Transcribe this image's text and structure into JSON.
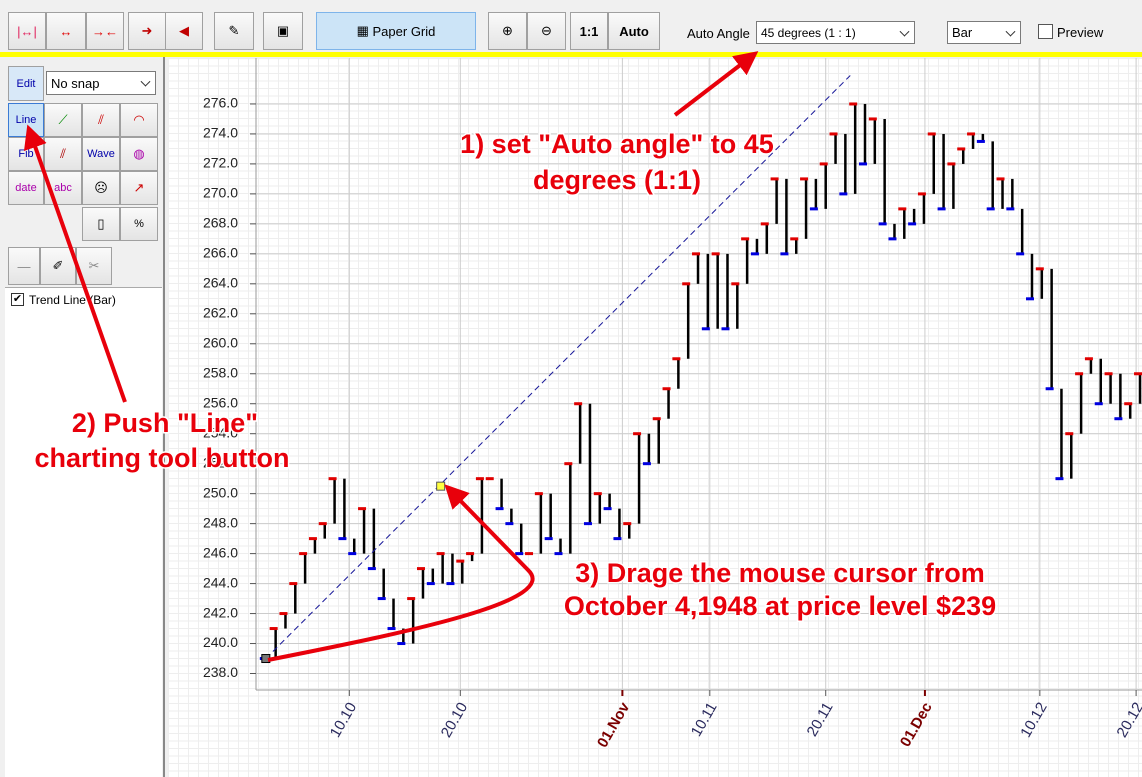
{
  "toolbar": {
    "paper_grid": "Paper Grid",
    "one_to_one": "1:1",
    "auto": "Auto",
    "auto_angle_label": "Auto Angle",
    "auto_angle_value": "45 degrees (1 : 1)",
    "chart_style": "Bar",
    "preview": "Preview"
  },
  "tool_panel": {
    "edit": "Edit",
    "snap": "No snap",
    "line": "Line",
    "fib": "Fib",
    "wave": "Wave",
    "date": "date",
    "abc": "abc",
    "percent": "%",
    "objects": [
      "Trend Line (Bar)"
    ]
  },
  "annotations": [
    {
      "lines": [
        "1) set \"Auto angle\"  to 45",
        "degrees (1:1)"
      ]
    },
    {
      "lines": [
        "2) Push \"Line\"",
        "charting tool button"
      ]
    },
    {
      "lines": [
        "3) Drage the mouse cursor from",
        "October 4,1948 at price level $239"
      ]
    }
  ],
  "chart_data": {
    "type": "step",
    "values": [
      239,
      241,
      242,
      244,
      246,
      247,
      248,
      251,
      247,
      246,
      249,
      245,
      243,
      241,
      240,
      243,
      245,
      244,
      246,
      244,
      245.5,
      246,
      251,
      251,
      249,
      248,
      246,
      246,
      250,
      247,
      246,
      252,
      256,
      248,
      250,
      249,
      247,
      248,
      254,
      252,
      255,
      257,
      259,
      264,
      266,
      261,
      266,
      261,
      264,
      267,
      266,
      268,
      271,
      266,
      267,
      271,
      269,
      272,
      274,
      270,
      276,
      272,
      275,
      268,
      267,
      269,
      268,
      270,
      274,
      269,
      272,
      273,
      274,
      273.5,
      269,
      271,
      269,
      266,
      263,
      265,
      257,
      251,
      254,
      258,
      259,
      256,
      258,
      255,
      256,
      258
    ],
    "color": "#000000",
    "up_color": "#e00000",
    "down_color": "#0000e0",
    "xlim": [
      -1,
      89.2
    ],
    "xticks": [
      {
        "value": 8.5,
        "label": "10.10"
      },
      {
        "value": 19.8,
        "label": "20.10"
      },
      {
        "value": 36.3,
        "label": "01.Nov",
        "emphasis": true
      },
      {
        "value": 45.2,
        "label": "10.11"
      },
      {
        "value": 57,
        "label": "20.11"
      },
      {
        "value": 67.1,
        "label": "01.Dec",
        "emphasis": true
      },
      {
        "value": 78.8,
        "label": "10.12"
      },
      {
        "value": 88.6,
        "label": "20.12"
      }
    ],
    "label_color": "#2b2b5e",
    "emphasis_color": "#7a0000",
    "ylim": [
      236.9,
      278.8
    ],
    "yticks": [
      {
        "value": 238,
        "label": "238.0"
      },
      {
        "value": 240,
        "label": "240.0"
      },
      {
        "value": 242,
        "label": "242.0"
      },
      {
        "value": 244,
        "label": "244.0"
      },
      {
        "value": 246,
        "label": "246.0"
      },
      {
        "value": 248,
        "label": "248.0"
      },
      {
        "value": 250,
        "label": "250.0"
      },
      {
        "value": 252,
        "label": "252.0"
      },
      {
        "value": 254,
        "label": "254.0"
      },
      {
        "value": 256,
        "label": "256.0"
      },
      {
        "value": 258,
        "label": "258.0"
      },
      {
        "value": 260,
        "label": "260.0"
      },
      {
        "value": 262,
        "label": "262.0"
      },
      {
        "value": 264,
        "label": "264.0"
      },
      {
        "value": 266,
        "label": "266.0"
      },
      {
        "value": 268,
        "label": "268.0"
      },
      {
        "value": 270,
        "label": "270.0"
      },
      {
        "value": 272,
        "label": "272.0"
      },
      {
        "value": 274,
        "label": "274.0"
      },
      {
        "value": 276,
        "label": "276.0"
      }
    ],
    "grid": true,
    "trend_line": {
      "x": [
        0,
        59.5
      ],
      "values": [
        239,
        277.9
      ],
      "color": "#1a1a9a",
      "handle": {
        "x": 17.8,
        "value": 250.5
      }
    }
  }
}
